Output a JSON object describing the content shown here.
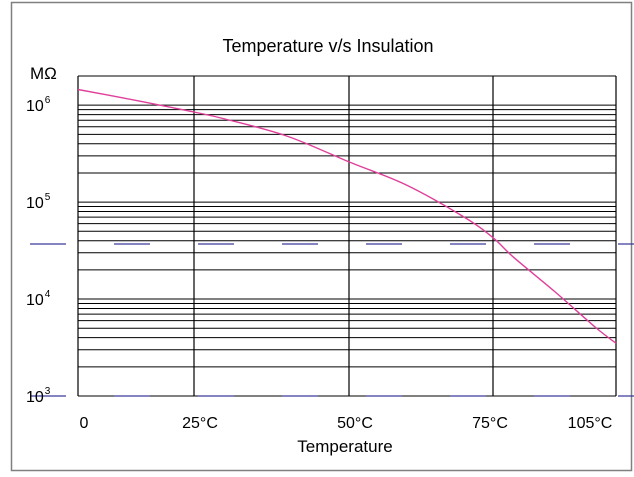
{
  "chart_data": {
    "type": "line",
    "title": "Temperature v/s Insulation",
    "xlabel": "Temperature",
    "ylabel": "MΩ",
    "y_scale": "log",
    "ylim": [
      1000,
      2000000
    ],
    "xlim": [
      0,
      105
    ],
    "grid": true,
    "x_ticks": [
      {
        "value": 0,
        "label": "0"
      },
      {
        "value": 25,
        "label": "25°C"
      },
      {
        "value": 50,
        "label": "50°C"
      },
      {
        "value": 75,
        "label": "75°C"
      },
      {
        "value": 105,
        "label": "105°C"
      }
    ],
    "y_ticks": [
      {
        "value": 1000,
        "base": "10",
        "exp": "3"
      },
      {
        "value": 10000,
        "base": "10",
        "exp": "4"
      },
      {
        "value": 100000,
        "base": "10",
        "exp": "5"
      },
      {
        "value": 1000000,
        "base": "10",
        "exp": "6"
      }
    ],
    "reference_lines": [
      37000,
      1000
    ],
    "series": [
      {
        "color": "#e0409a",
        "x": [
          0,
          10,
          20,
          25,
          30,
          40,
          50,
          60,
          70,
          75,
          80,
          90,
          100,
          105
        ],
        "y": [
          1450000,
          1180000,
          950000,
          850000,
          720000,
          480000,
          260000,
          150000,
          70000,
          43000,
          27000,
          12000,
          5100,
          3500
        ]
      }
    ],
    "colors": {
      "grid": "#000000",
      "reference": "#3b3b9a",
      "frame": "#808080"
    }
  }
}
